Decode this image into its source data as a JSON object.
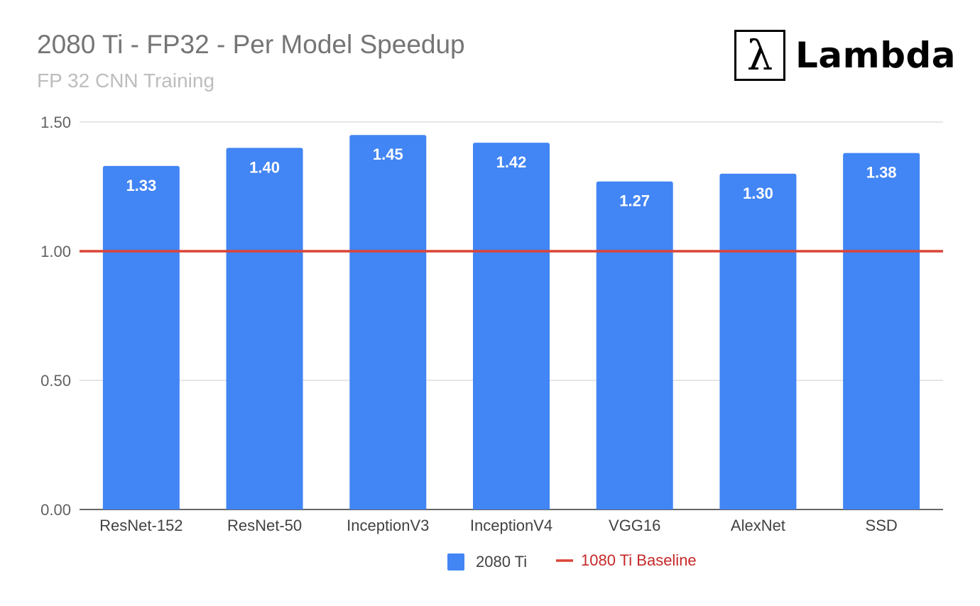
{
  "logo": {
    "symbol": "λ",
    "text": "Lambda"
  },
  "chart_data": {
    "type": "bar",
    "title": "2080 Ti - FP32 - Per Model Speedup",
    "subtitle": "FP 32 CNN Training",
    "categories": [
      "ResNet-152",
      "ResNet-50",
      "InceptionV3",
      "InceptionV4",
      "VGG16",
      "AlexNet",
      "SSD"
    ],
    "series": [
      {
        "name": "2080 Ti",
        "values": [
          1.33,
          1.4,
          1.45,
          1.42,
          1.27,
          1.3,
          1.38
        ],
        "color": "#4285f4"
      }
    ],
    "data_labels": [
      "1.33",
      "1.40",
      "1.45",
      "1.42",
      "1.27",
      "1.30",
      "1.38"
    ],
    "baseline": {
      "name": "1080 Ti Baseline",
      "value": 1.0,
      "color": "#db4437"
    },
    "yticks": [
      0.0,
      0.5,
      1.0,
      1.5
    ],
    "ytick_labels": [
      "0.00",
      "0.50",
      "1.00",
      "1.50"
    ],
    "ylim": [
      0,
      1.5
    ],
    "grid": true,
    "legend_position": "bottom"
  }
}
